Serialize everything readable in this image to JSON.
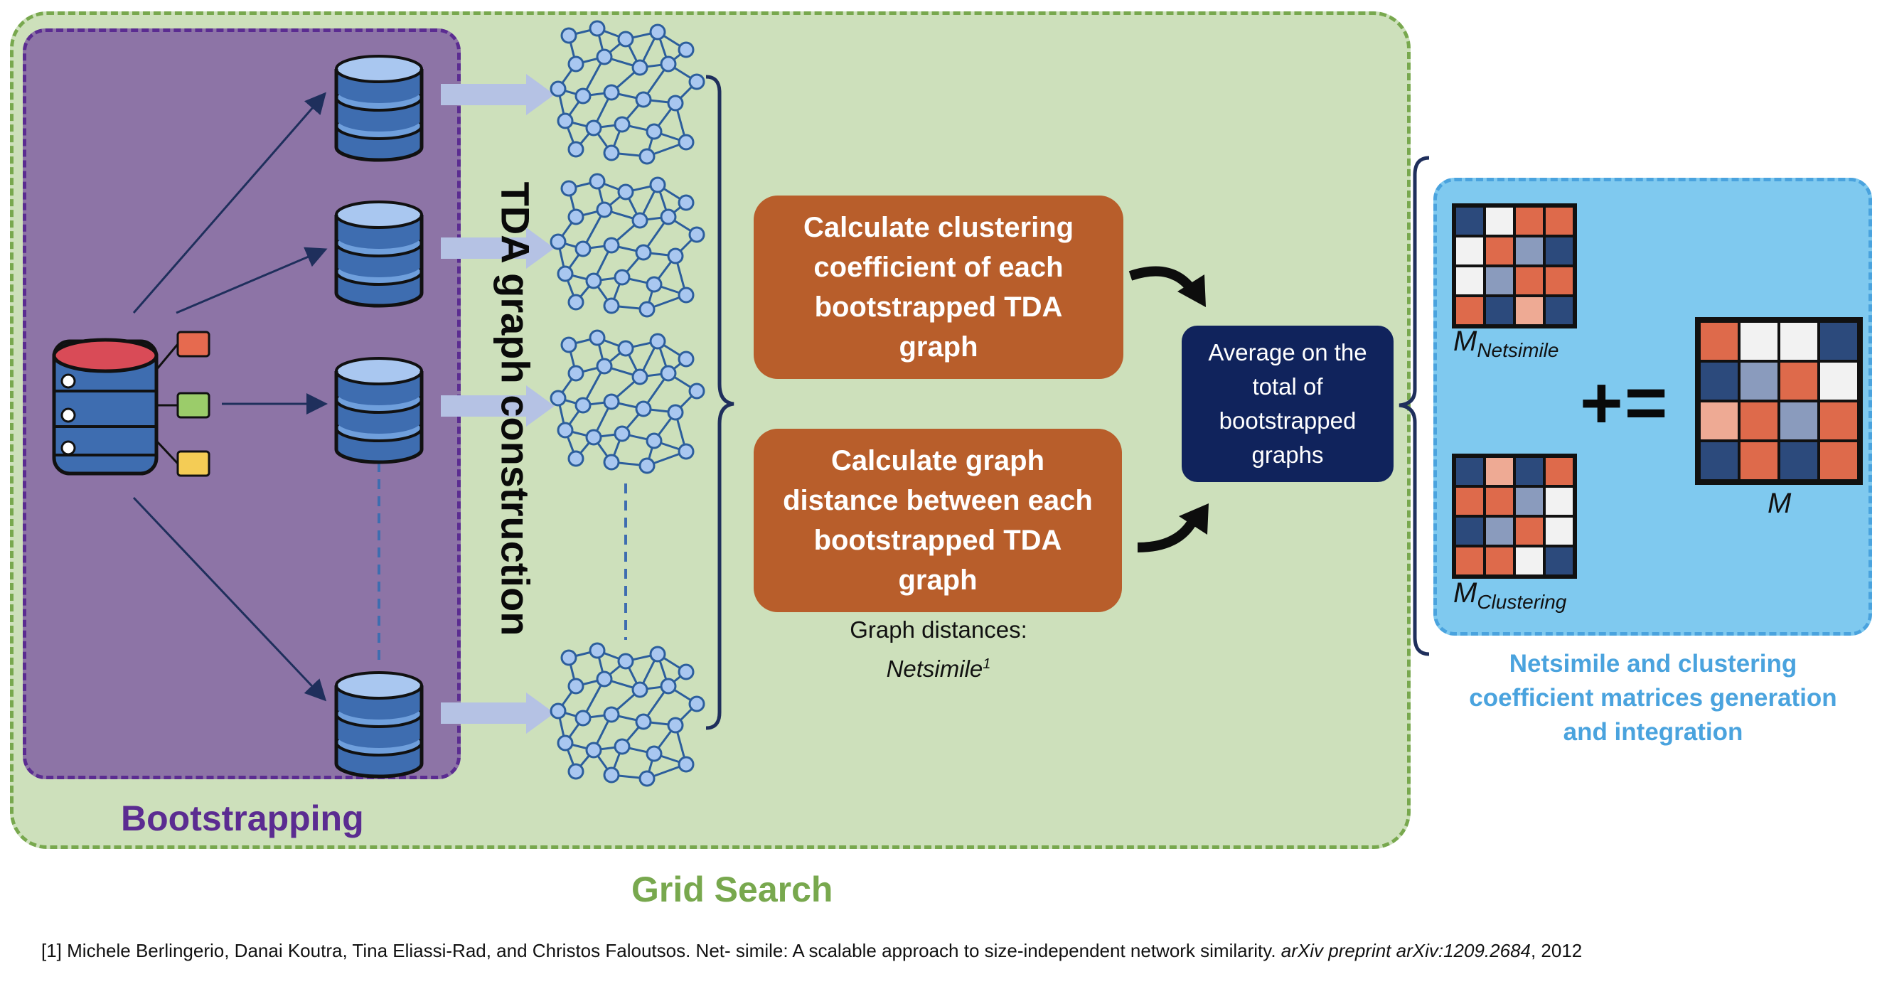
{
  "grid_search": {
    "label": "Grid Search"
  },
  "bootstrapping": {
    "label": "Bootstrapping"
  },
  "tda": {
    "label": "TDA graph construction"
  },
  "steps": {
    "clustering": "Calculate clustering coefficient of each bootstrapped TDA graph",
    "distance": "Calculate graph distance between each bootstrapped TDA graph",
    "average": "Average on the total of bootstrapped graphs"
  },
  "graph_distances": {
    "prefix": "Graph distances:",
    "method": "Netsimile",
    "marker": "1"
  },
  "matrices": {
    "m_netsimile": "M",
    "m_netsimile_sub": "Netsimile",
    "m_clustering": "M",
    "m_clustering_sub": "Clustering",
    "m_result": "M",
    "operator": "+=",
    "caption": "Netsimile and clustering coefficient matrices generation and integration"
  },
  "reference": {
    "text": "[1] Michele Berlingerio, Danai Koutra, Tina Eliassi-Rad, and Christos Faloutsos. Net- simile: A scalable approach to size-independent network similarity. ",
    "journal": "arXiv preprint arXiv:1209.2684",
    "year": ", 2012"
  },
  "colors": {
    "grid_bg": "#cde0bb",
    "grid_border": "#78a84e",
    "boot_bg": "#8d74a6",
    "boot_border": "#5b2c91",
    "step_box": "#b85e2b",
    "avg_box": "#10235c",
    "panel_blue": "#7fc9ef",
    "caption_blue": "#4aa3de",
    "cell_dark": "#2c4a7c",
    "cell_orange": "#de6a4b",
    "cell_light": "#f2f2f2",
    "cell_grey": "#8a9bbd",
    "cell_pink": "#eeaa94"
  },
  "icons": [
    "database-icon",
    "network-graph-icon",
    "matrix-icon",
    "curved-arrow-icon"
  ],
  "matrix_cells": {
    "netsimile": [
      [
        "d",
        "l",
        "o",
        "o"
      ],
      [
        "l",
        "o",
        "g",
        "d"
      ],
      [
        "l",
        "g",
        "o",
        "o"
      ],
      [
        "o",
        "d",
        "p",
        "d"
      ]
    ],
    "clustering": [
      [
        "d",
        "p",
        "d",
        "o"
      ],
      [
        "o",
        "o",
        "g",
        "l"
      ],
      [
        "d",
        "g",
        "o",
        "l"
      ],
      [
        "o",
        "o",
        "l",
        "d"
      ]
    ],
    "result": [
      [
        "o",
        "l",
        "l",
        "d"
      ],
      [
        "d",
        "g",
        "o",
        "l"
      ],
      [
        "p",
        "o",
        "g",
        "o"
      ],
      [
        "d",
        "o",
        "d",
        "o"
      ]
    ]
  }
}
